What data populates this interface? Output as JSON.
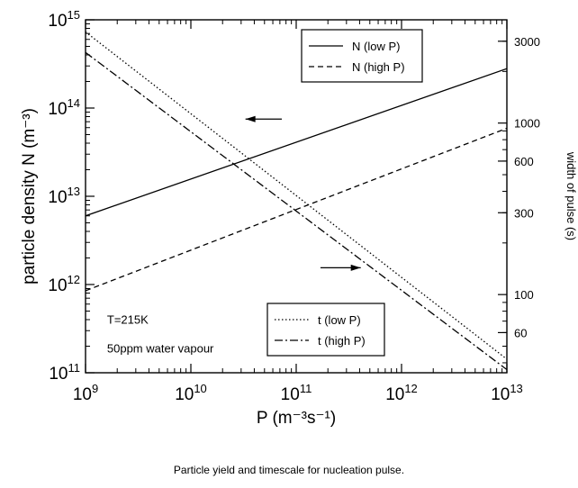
{
  "caption": "Particle yield and timescale for nucleation pulse.",
  "chart_data": {
    "type": "line",
    "xlabel": "P (m⁻³s⁻¹)",
    "ylabel_left": "particle density N (m⁻³)",
    "ylabel_right": "width of pulse (s)",
    "x_scale": "log",
    "y_left_scale": "log",
    "y_right_scale": "log",
    "xlim": [
      1000000000.0,
      10000000000000.0
    ],
    "ylim_left": [
      100000000000.0,
      1000000000000000.0
    ],
    "ylim_right": [
      35,
      4000
    ],
    "grid": false,
    "x_ticks": [
      {
        "value": 1000000000.0,
        "base": "10",
        "exp": "9"
      },
      {
        "value": 10000000000.0,
        "base": "10",
        "exp": "10"
      },
      {
        "value": 100000000000.0,
        "base": "10",
        "exp": "11"
      },
      {
        "value": 1000000000000.0,
        "base": "10",
        "exp": "12"
      },
      {
        "value": 10000000000000.0,
        "base": "10",
        "exp": "13"
      }
    ],
    "y_left_ticks": [
      {
        "value": 100000000000.0,
        "base": "10",
        "exp": "11"
      },
      {
        "value": 1000000000000.0,
        "base": "10",
        "exp": "12"
      },
      {
        "value": 10000000000000.0,
        "base": "10",
        "exp": "13"
      },
      {
        "value": 100000000000000.0,
        "base": "10",
        "exp": "14"
      },
      {
        "value": 1000000000000000.0,
        "base": "10",
        "exp": "15"
      }
    ],
    "y_right_ticks": [
      {
        "value": 60,
        "label": "60"
      },
      {
        "value": 100,
        "label": "100"
      },
      {
        "value": 300,
        "label": "300"
      },
      {
        "value": 600,
        "label": "600"
      },
      {
        "value": 1000,
        "label": "1000"
      },
      {
        "value": 3000,
        "label": "3000"
      }
    ],
    "series": [
      {
        "name": "N (low P)",
        "axis": "left",
        "dash": "solid",
        "x": [
          1000000000.0,
          10000000000000.0
        ],
        "y": [
          6000000000000.0,
          280000000000000.0
        ]
      },
      {
        "name": "N (high P)",
        "axis": "left",
        "dash": "dash",
        "x": [
          1000000000.0,
          10000000000000.0
        ],
        "y": [
          850000000000.0,
          59000000000000.0
        ]
      },
      {
        "name": "t (low P)",
        "axis": "right",
        "dash": "dot",
        "x": [
          1000000000.0,
          10000000000000.0
        ],
        "y": [
          3400,
          42
        ]
      },
      {
        "name": "t (high P)",
        "axis": "right",
        "dash": "dashdot",
        "x": [
          1000000000.0,
          10000000000000.0
        ],
        "y": [
          2580,
          36.5
        ]
      }
    ],
    "legends": [
      {
        "placement": "top-right",
        "entries": [
          "N (low P)",
          "N (high P)"
        ]
      },
      {
        "placement": "bottom-center",
        "entries": [
          "t (low P)",
          "t (high P)"
        ]
      }
    ],
    "annotations": [
      {
        "text": "T=215K",
        "x": 1600000000.0,
        "y": 360000000000.0
      },
      {
        "text": "50ppm water vapour",
        "x": 1600000000.0,
        "y": 170000000000.0
      }
    ],
    "arrows": [
      {
        "direction": "left",
        "points_to_axis": "left",
        "from_x": 73000000000.0,
        "to_x": 33000000000.0,
        "y": 75000000000000.0
      },
      {
        "direction": "right",
        "points_to_axis": "right",
        "from_x": 170000000000.0,
        "to_x": 410000000000.0,
        "y": 1550000000000.0
      }
    ]
  }
}
